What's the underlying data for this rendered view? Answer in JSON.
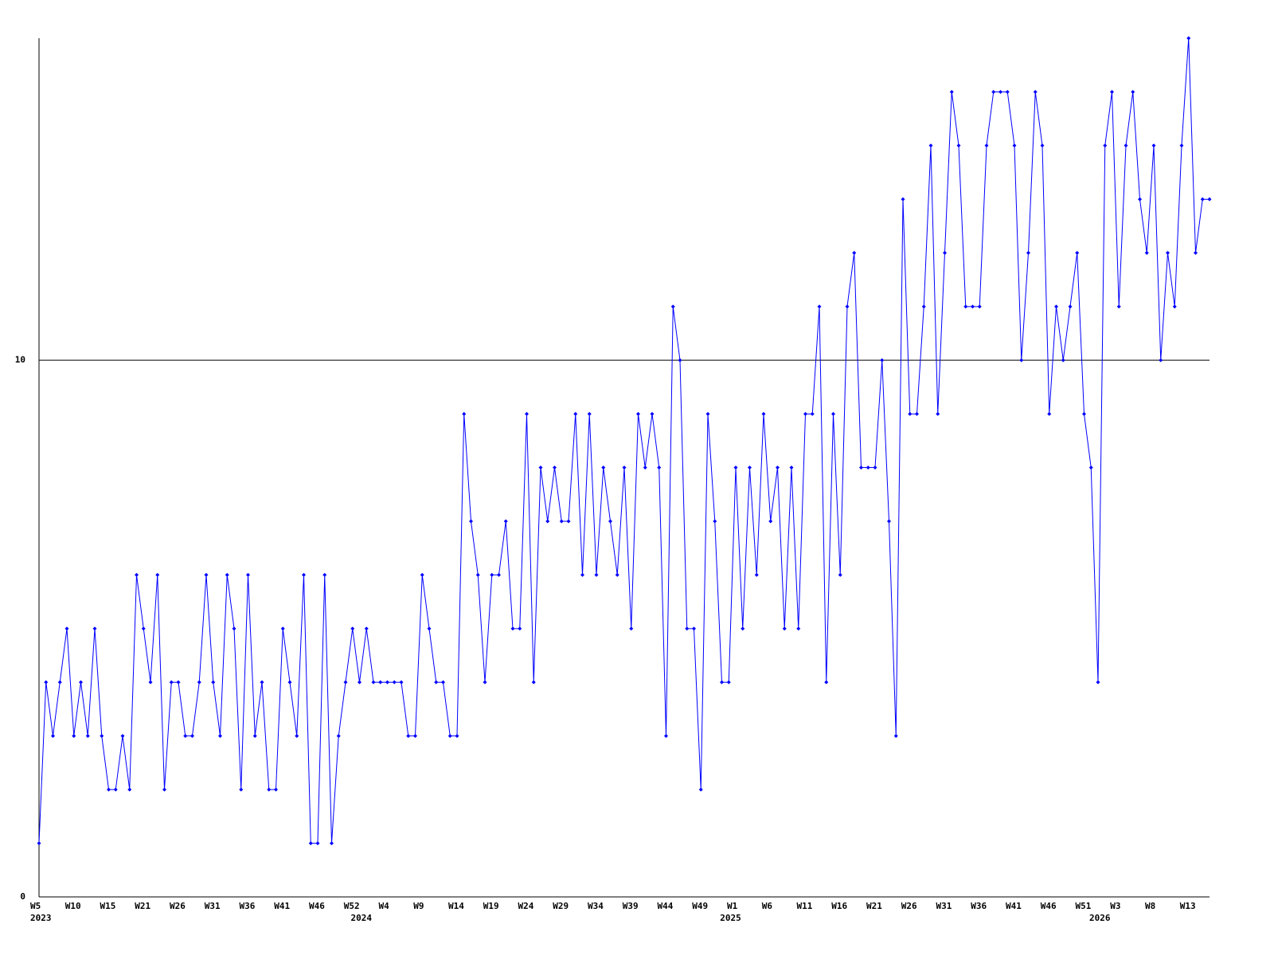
{
  "chart_data": {
    "type": "line",
    "color": "#0000ff",
    "ylim": [
      0,
      16
    ],
    "yticks": [
      0,
      10
    ],
    "grid": true,
    "categories": [
      "W5",
      null,
      null,
      null,
      null,
      "W10",
      null,
      null,
      null,
      null,
      "W15",
      null,
      null,
      null,
      null,
      "W21",
      null,
      null,
      null,
      null,
      "W26",
      null,
      null,
      null,
      null,
      "W31",
      null,
      null,
      null,
      null,
      "W36",
      null,
      null,
      null,
      null,
      "W41",
      null,
      null,
      null,
      null,
      "W46",
      null,
      null,
      null,
      null,
      "W52",
      null,
      null,
      null,
      null,
      "W4",
      null,
      null,
      null,
      null,
      "W9",
      null,
      null,
      null,
      null,
      "W14",
      null,
      null,
      null,
      null,
      "W19",
      null,
      null,
      null,
      null,
      "W24",
      null,
      null,
      null,
      null,
      "W29",
      null,
      null,
      null,
      null,
      "W34",
      null,
      null,
      null,
      null,
      "W39",
      null,
      null,
      null,
      null,
      "W44",
      null,
      null,
      null,
      null,
      "W49",
      null,
      null,
      null,
      null,
      "W1",
      null,
      null,
      null,
      null,
      "W6",
      null,
      null,
      null,
      null,
      "W11",
      null,
      null,
      null,
      null,
      "W16",
      null,
      null,
      null,
      null,
      "W21",
      null,
      null,
      null,
      null,
      "W26",
      null,
      null,
      null,
      null,
      "W31",
      null,
      null,
      null,
      null,
      "W36",
      null,
      null,
      null,
      null,
      "W41",
      null,
      null,
      null,
      null,
      "W46",
      null,
      null,
      null,
      null,
      "W51",
      null,
      null,
      null,
      null,
      "W3",
      null,
      null,
      null,
      null,
      "W8",
      null,
      null,
      null,
      null,
      "W13",
      null,
      null,
      null
    ],
    "year_categories": [
      "2023",
      null,
      null,
      null,
      null,
      null,
      null,
      null,
      null,
      null,
      null,
      null,
      null,
      null,
      null,
      null,
      null,
      null,
      null,
      null,
      null,
      null,
      null,
      null,
      null,
      null,
      null,
      null,
      null,
      null,
      null,
      null,
      null,
      null,
      null,
      null,
      null,
      null,
      null,
      null,
      null,
      null,
      null,
      null,
      null,
      null,
      "2024",
      null,
      null,
      null,
      null,
      null,
      null,
      null,
      null,
      null,
      null,
      null,
      null,
      null,
      null,
      null,
      null,
      null,
      null,
      null,
      null,
      null,
      null,
      null,
      null,
      null,
      null,
      null,
      null,
      null,
      null,
      null,
      null,
      null,
      null,
      null,
      null,
      null,
      null,
      null,
      null,
      null,
      null,
      null,
      null,
      null,
      null,
      null,
      null,
      null,
      null,
      null,
      null,
      "2025",
      null,
      null,
      null,
      null,
      null,
      null,
      null,
      null,
      null,
      null,
      null,
      null,
      null,
      null,
      null,
      null,
      null,
      null,
      null,
      null,
      null,
      null,
      null,
      null,
      null,
      null,
      null,
      null,
      null,
      null,
      null,
      null,
      null,
      null,
      null,
      null,
      null,
      null,
      null,
      null,
      null,
      null,
      null,
      null,
      null,
      null,
      null,
      null,
      null,
      null,
      null,
      null,
      "2026",
      null,
      null,
      null,
      null,
      null,
      null,
      null,
      null,
      null,
      null,
      null,
      null,
      null,
      null,
      null,
      null
    ],
    "values": [
      1,
      4,
      3,
      4,
      5,
      3,
      4,
      3,
      5,
      3,
      2,
      2,
      3,
      2,
      6,
      5,
      4,
      6,
      2,
      4,
      4,
      3,
      3,
      4,
      6,
      4,
      3,
      6,
      5,
      2,
      6,
      3,
      4,
      2,
      2,
      5,
      4,
      3,
      6,
      1,
      1,
      6,
      1,
      3,
      4,
      5,
      4,
      5,
      4,
      4,
      4,
      4,
      4,
      3,
      3,
      6,
      5,
      4,
      4,
      3,
      3,
      9,
      7,
      6,
      4,
      6,
      6,
      7,
      5,
      5,
      9,
      4,
      8,
      7,
      8,
      7,
      7,
      9,
      6,
      9,
      6,
      8,
      7,
      6,
      8,
      5,
      9,
      8,
      9,
      8,
      3,
      11,
      10,
      5,
      5,
      2,
      9,
      7,
      4,
      4,
      8,
      5,
      8,
      6,
      9,
      7,
      8,
      5,
      8,
      5,
      9,
      9,
      11,
      4,
      9,
      6,
      11,
      12,
      8,
      8,
      8,
      10,
      7,
      3,
      13,
      9,
      9,
      11,
      14,
      9,
      12,
      15,
      14,
      11,
      11,
      11,
      14,
      15,
      15,
      15,
      14,
      10,
      12,
      15,
      14,
      9,
      11,
      10,
      11,
      12,
      9,
      8,
      4,
      14,
      15,
      11,
      14,
      15,
      13,
      12,
      14,
      10,
      12,
      11,
      14,
      16,
      12,
      13,
      13
    ]
  }
}
